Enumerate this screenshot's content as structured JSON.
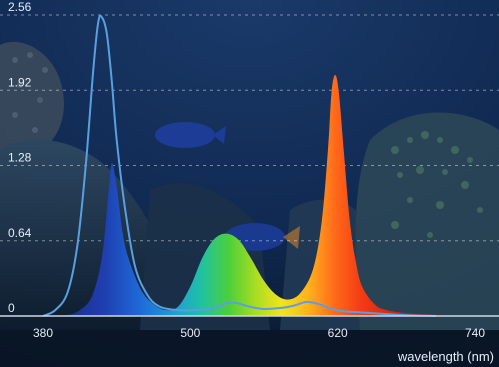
{
  "chart_data": {
    "type": "area",
    "title": "",
    "xlabel": "wavelength (nm)",
    "ylabel": "",
    "xlim": [
      380,
      740
    ],
    "ylim": [
      0,
      2.56
    ],
    "x_ticks": [
      380,
      500,
      620,
      740
    ],
    "y_ticks": [
      0,
      0.64,
      1.28,
      1.92,
      2.56
    ],
    "x_tick_labels": [
      "380",
      "500",
      "620",
      "740"
    ],
    "y_tick_labels": [
      "0",
      "0.64",
      "1.28",
      "1.92",
      "2.56"
    ],
    "grid": "horizontal dashed",
    "series": [
      {
        "kind": "filled spectrum",
        "color_scale": "wavelength",
        "points": [
          [
            380,
            0
          ],
          [
            400,
            0.01
          ],
          [
            410,
            0.05
          ],
          [
            420,
            0.17
          ],
          [
            428,
            0.5
          ],
          [
            433,
            1.0
          ],
          [
            436,
            1.3
          ],
          [
            440,
            1.1
          ],
          [
            445,
            0.7
          ],
          [
            450,
            0.48
          ],
          [
            460,
            0.22
          ],
          [
            470,
            0.1
          ],
          [
            480,
            0.05
          ],
          [
            490,
            0.08
          ],
          [
            500,
            0.25
          ],
          [
            510,
            0.5
          ],
          [
            520,
            0.66
          ],
          [
            530,
            0.7
          ],
          [
            540,
            0.64
          ],
          [
            550,
            0.48
          ],
          [
            560,
            0.3
          ],
          [
            570,
            0.18
          ],
          [
            580,
            0.14
          ],
          [
            590,
            0.2
          ],
          [
            600,
            0.4
          ],
          [
            607,
            0.8
          ],
          [
            612,
            1.4
          ],
          [
            615,
            1.9
          ],
          [
            618,
            2.05
          ],
          [
            621,
            1.9
          ],
          [
            625,
            1.4
          ],
          [
            630,
            0.8
          ],
          [
            635,
            0.45
          ],
          [
            640,
            0.25
          ],
          [
            650,
            0.1
          ],
          [
            660,
            0.05
          ],
          [
            680,
            0.02
          ],
          [
            700,
            0.01
          ],
          [
            720,
            0.0
          ]
        ]
      },
      {
        "kind": "line",
        "color": "#5a9fe0",
        "points": [
          [
            380,
            0.0
          ],
          [
            390,
            0.05
          ],
          [
            400,
            0.2
          ],
          [
            408,
            0.6
          ],
          [
            415,
            1.3
          ],
          [
            421,
            2.1
          ],
          [
            425,
            2.5
          ],
          [
            428,
            2.54
          ],
          [
            432,
            2.4
          ],
          [
            436,
            2.0
          ],
          [
            440,
            1.5
          ],
          [
            447,
            0.9
          ],
          [
            455,
            0.42
          ],
          [
            465,
            0.18
          ],
          [
            475,
            0.08
          ],
          [
            490,
            0.05
          ],
          [
            505,
            0.05
          ],
          [
            520,
            0.07
          ],
          [
            530,
            0.11
          ],
          [
            538,
            0.11
          ],
          [
            548,
            0.08
          ],
          [
            560,
            0.06
          ],
          [
            575,
            0.07
          ],
          [
            585,
            0.09
          ],
          [
            595,
            0.12
          ],
          [
            605,
            0.1
          ],
          [
            615,
            0.06
          ],
          [
            625,
            0.04
          ],
          [
            640,
            0.03
          ],
          [
            670,
            0.01
          ],
          [
            700,
            0.0
          ]
        ]
      }
    ]
  }
}
